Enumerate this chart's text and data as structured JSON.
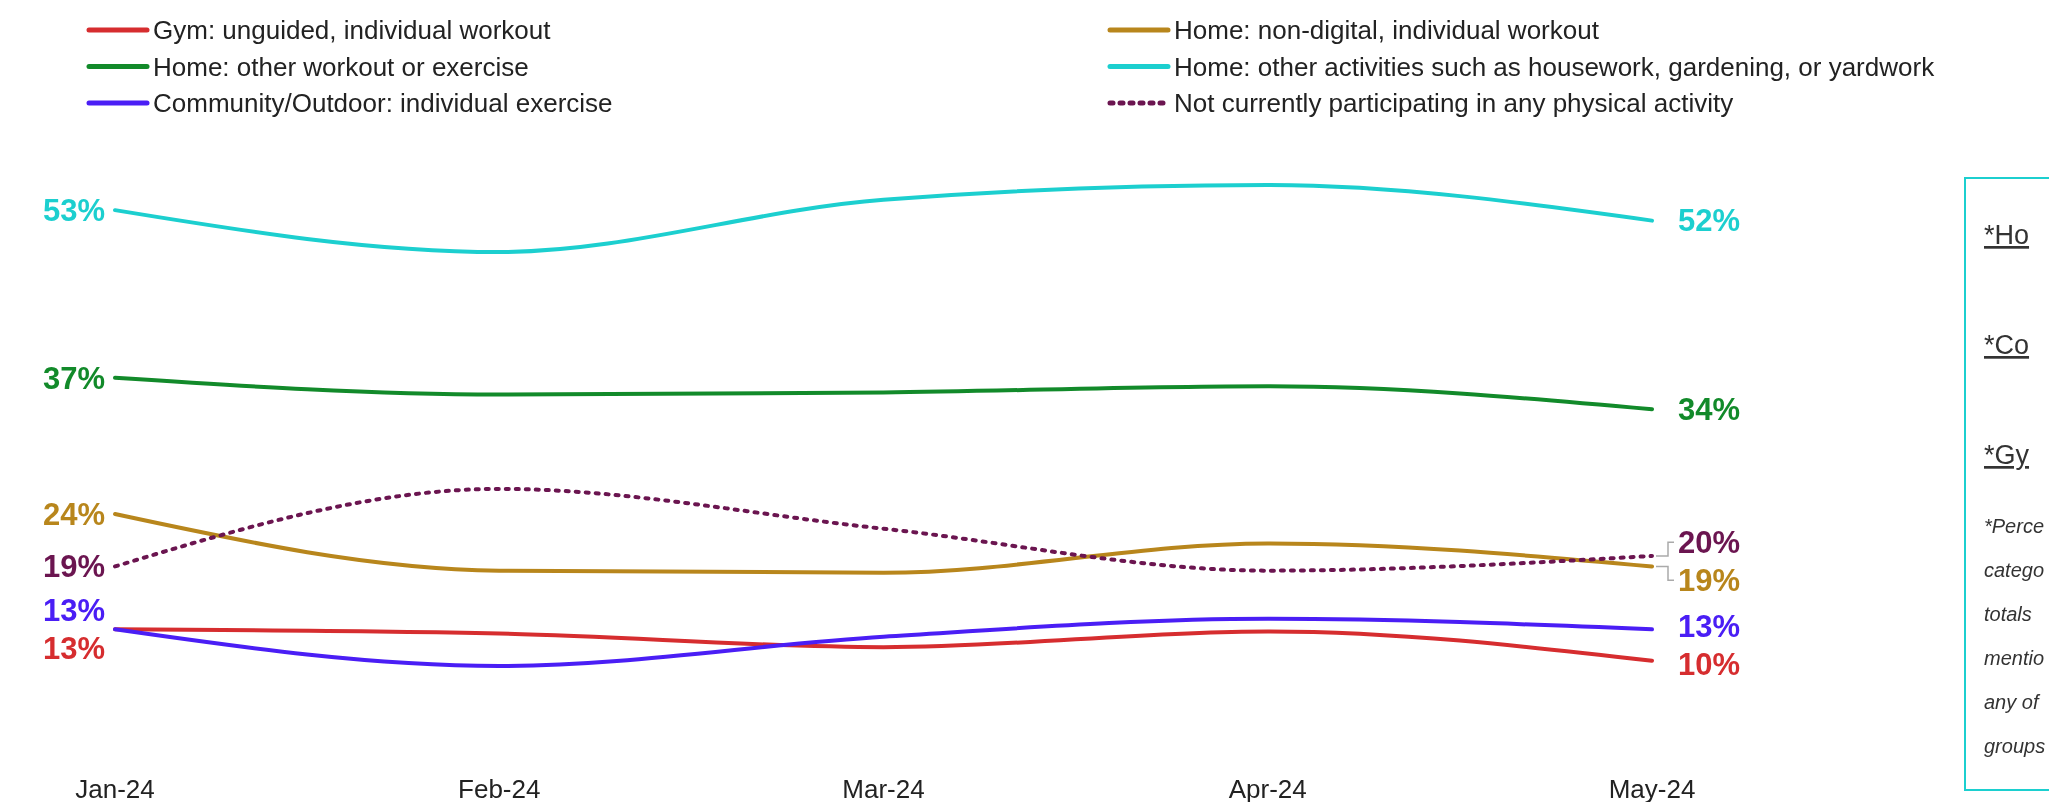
{
  "chart_data": {
    "type": "line",
    "categories": [
      "Jan-24",
      "Feb-24",
      "Mar-24",
      "Apr-24",
      "May-24"
    ],
    "tick_labels": "x",
    "legend": "top",
    "series": [
      {
        "name": "Gym: unguided, individual workout",
        "color": "#d62d2f",
        "values": [
          13,
          12.6,
          11.3,
          12.8,
          10
        ],
        "value_labels": [
          "13%",
          null,
          null,
          null,
          "10%"
        ]
      },
      {
        "name": "Home: non-digital, individual workout",
        "color": "#b8861c",
        "values": [
          24,
          18.6,
          18.4,
          21.2,
          19
        ],
        "value_labels": [
          "24%",
          null,
          null,
          null,
          "19%"
        ]
      },
      {
        "name": "Home: other workout or exercise",
        "color": "#128a2a",
        "values": [
          37,
          35.4,
          35.6,
          36.2,
          34
        ],
        "value_labels": [
          "37%",
          null,
          null,
          null,
          "34%"
        ]
      },
      {
        "name": "Home: other activities such as housework, gardening, or yardwork",
        "color": "#1ccfcf",
        "values": [
          53,
          49,
          54,
          55.4,
          52
        ],
        "value_labels": [
          "53%",
          null,
          null,
          null,
          "52%"
        ]
      },
      {
        "name": "Community/Outdoor: individual exercise",
        "color": "#4a1ef5",
        "values": [
          13,
          9.5,
          12.3,
          14,
          13
        ],
        "value_labels": [
          "13%",
          null,
          null,
          null,
          "13%"
        ]
      },
      {
        "name": "Not currently participating in any physical activity",
        "color": "#6b1550",
        "line_style": "dotted",
        "values": [
          19,
          26.4,
          22.6,
          18.6,
          20
        ],
        "value_labels": [
          "19%",
          null,
          null,
          null,
          "20%"
        ]
      }
    ],
    "annotations": [
      "*Ho",
      "*Co",
      "*Gy",
      "*Perce",
      "catego",
      "totals",
      "mentio",
      "any of",
      "groups"
    ]
  }
}
